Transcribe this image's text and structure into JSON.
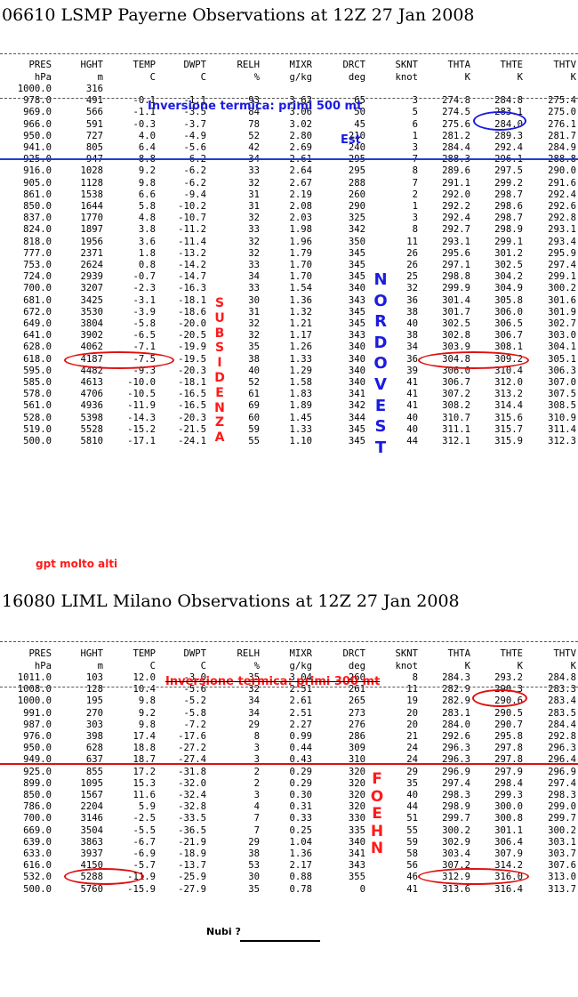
{
  "payerne": {
    "title": "06610 LSMP Payerne Observations at 12Z 27 Jan 2008",
    "headers": [
      "PRES",
      "HGHT",
      "TEMP",
      "DWPT",
      "RELH",
      "MIXR",
      "DRCT",
      "SKNT",
      "THTA",
      "THTE",
      "THTV"
    ],
    "units": [
      "hPa",
      "m",
      "C",
      "C",
      "%",
      "g/kg",
      "deg",
      "knot",
      "K",
      "K",
      "K"
    ],
    "rows": [
      [
        "1000.0",
        "316",
        "",
        "",
        "",
        "",
        "",
        "",
        "",
        "",
        ""
      ],
      [
        "978.0",
        "491",
        "-0.1",
        "-1.1",
        "93",
        "3.62",
        "65",
        "3",
        "274.8",
        "284.8",
        "275.4"
      ],
      [
        "969.0",
        "566",
        "-1.1",
        "-3.5",
        "84",
        "3.06",
        "50",
        "5",
        "274.5",
        "283.1",
        "275.0"
      ],
      [
        "966.0",
        "591",
        "-0.3",
        "-3.7",
        "78",
        "3.02",
        "45",
        "6",
        "275.6",
        "284.0",
        "276.1"
      ],
      [
        "950.0",
        "727",
        "4.0",
        "-4.9",
        "52",
        "2.80",
        "210",
        "1",
        "281.2",
        "289.3",
        "281.7"
      ],
      [
        "941.0",
        "805",
        "6.4",
        "-5.6",
        "42",
        "2.69",
        "240",
        "3",
        "284.4",
        "292.4",
        "284.9"
      ],
      [
        "925.0",
        "947",
        "8.8",
        "-6.2",
        "34",
        "2.61",
        "295",
        "7",
        "288.3",
        "296.1",
        "288.8"
      ],
      [
        "916.0",
        "1028",
        "9.2",
        "-6.2",
        "33",
        "2.64",
        "295",
        "8",
        "289.6",
        "297.5",
        "290.0"
      ],
      [
        "905.0",
        "1128",
        "9.8",
        "-6.2",
        "32",
        "2.67",
        "288",
        "7",
        "291.1",
        "299.2",
        "291.6"
      ],
      [
        "861.0",
        "1538",
        "6.6",
        "-9.4",
        "31",
        "2.19",
        "260",
        "2",
        "292.0",
        "298.7",
        "292.4"
      ],
      [
        "850.0",
        "1644",
        "5.8",
        "-10.2",
        "31",
        "2.08",
        "290",
        "1",
        "292.2",
        "298.6",
        "292.6"
      ],
      [
        "837.0",
        "1770",
        "4.8",
        "-10.7",
        "32",
        "2.03",
        "325",
        "3",
        "292.4",
        "298.7",
        "292.8"
      ],
      [
        "824.0",
        "1897",
        "3.8",
        "-11.2",
        "33",
        "1.98",
        "342",
        "8",
        "292.7",
        "298.9",
        "293.1"
      ],
      [
        "818.0",
        "1956",
        "3.6",
        "-11.4",
        "32",
        "1.96",
        "350",
        "11",
        "293.1",
        "299.1",
        "293.4"
      ],
      [
        "777.0",
        "2371",
        "1.8",
        "-13.2",
        "32",
        "1.79",
        "345",
        "26",
        "295.6",
        "301.2",
        "295.9"
      ],
      [
        "753.0",
        "2624",
        "0.8",
        "-14.2",
        "33",
        "1.70",
        "345",
        "26",
        "297.1",
        "302.5",
        "297.4"
      ],
      [
        "724.0",
        "2939",
        "-0.7",
        "-14.7",
        "34",
        "1.70",
        "345",
        "25",
        "298.8",
        "304.2",
        "299.1"
      ],
      [
        "700.0",
        "3207",
        "-2.3",
        "-16.3",
        "33",
        "1.54",
        "340",
        "32",
        "299.9",
        "304.9",
        "300.2"
      ],
      [
        "681.0",
        "3425",
        "-3.1",
        "-18.1",
        "30",
        "1.36",
        "343",
        "36",
        "301.4",
        "305.8",
        "301.6"
      ],
      [
        "672.0",
        "3530",
        "-3.9",
        "-18.6",
        "31",
        "1.32",
        "345",
        "38",
        "301.7",
        "306.0",
        "301.9"
      ],
      [
        "649.0",
        "3804",
        "-5.8",
        "-20.0",
        "32",
        "1.21",
        "345",
        "40",
        "302.5",
        "306.5",
        "302.7"
      ],
      [
        "641.0",
        "3902",
        "-6.5",
        "-20.5",
        "32",
        "1.17",
        "343",
        "38",
        "302.8",
        "306.7",
        "303.0"
      ],
      [
        "628.0",
        "4062",
        "-7.1",
        "-19.9",
        "35",
        "1.26",
        "340",
        "34",
        "303.9",
        "308.1",
        "304.1"
      ],
      [
        "618.0",
        "4187",
        "-7.5",
        "-19.5",
        "38",
        "1.33",
        "340",
        "36",
        "304.8",
        "309.2",
        "305.1"
      ],
      [
        "595.0",
        "4482",
        "-9.3",
        "-20.3",
        "40",
        "1.29",
        "340",
        "39",
        "306.0",
        "310.4",
        "306.3"
      ],
      [
        "585.0",
        "4613",
        "-10.0",
        "-18.1",
        "52",
        "1.58",
        "340",
        "41",
        "306.7",
        "312.0",
        "307.0"
      ],
      [
        "578.0",
        "4706",
        "-10.5",
        "-16.5",
        "61",
        "1.83",
        "341",
        "41",
        "307.2",
        "313.2",
        "307.5"
      ],
      [
        "561.0",
        "4936",
        "-11.9",
        "-16.5",
        "69",
        "1.89",
        "342",
        "41",
        "308.2",
        "314.4",
        "308.5"
      ],
      [
        "528.0",
        "5398",
        "-14.3",
        "-20.3",
        "60",
        "1.45",
        "344",
        "40",
        "310.7",
        "315.6",
        "310.9"
      ],
      [
        "519.0",
        "5528",
        "-15.2",
        "-21.5",
        "59",
        "1.33",
        "345",
        "40",
        "311.1",
        "315.7",
        "311.4"
      ],
      [
        "500.0",
        "5810",
        "-17.1",
        "-24.1",
        "55",
        "1.10",
        "345",
        "44",
        "312.1",
        "315.9",
        "312.3"
      ]
    ],
    "annotations": {
      "inversion": "Inversione termica: primi 500 mt",
      "est": "Est",
      "subsidenza": [
        "S",
        "U",
        "B",
        "S",
        "I",
        "D",
        "E",
        "N",
        "Z",
        "A"
      ],
      "nordovest": [
        "N",
        "O",
        "R",
        "D",
        "O",
        "V",
        "E",
        "S",
        "T"
      ],
      "gpt": "gpt molto alti"
    }
  },
  "milano": {
    "title": "16080 LIML Milano Observations at 12Z 27 Jan 2008",
    "headers": [
      "PRES",
      "HGHT",
      "TEMP",
      "DWPT",
      "RELH",
      "MIXR",
      "DRCT",
      "SKNT",
      "THTA",
      "THTE",
      "THTV"
    ],
    "units": [
      "hPa",
      "m",
      "C",
      "C",
      "%",
      "g/kg",
      "deg",
      "knot",
      "K",
      "K",
      "K"
    ],
    "rows": [
      [
        "1011.0",
        "103",
        "12.0",
        "-3.0",
        "35",
        "3.04",
        "260",
        "8",
        "284.3",
        "293.2",
        "284.8"
      ],
      [
        "1008.0",
        "128",
        "10.4",
        "-5.6",
        "32",
        "2.51",
        "261",
        "11",
        "282.9",
        "290.3",
        "283.3"
      ],
      [
        "1000.0",
        "195",
        "9.8",
        "-5.2",
        "34",
        "2.61",
        "265",
        "19",
        "282.9",
        "290.6",
        "283.4"
      ],
      [
        "991.0",
        "270",
        "9.2",
        "-5.8",
        "34",
        "2.51",
        "273",
        "20",
        "283.1",
        "290.5",
        "283.5"
      ],
      [
        "987.0",
        "303",
        "9.8",
        "-7.2",
        "29",
        "2.27",
        "276",
        "20",
        "284.0",
        "290.7",
        "284.4"
      ],
      [
        "976.0",
        "398",
        "17.4",
        "-17.6",
        "8",
        "0.99",
        "286",
        "21",
        "292.6",
        "295.8",
        "292.8"
      ],
      [
        "950.0",
        "628",
        "18.8",
        "-27.2",
        "3",
        "0.44",
        "309",
        "24",
        "296.3",
        "297.8",
        "296.3"
      ],
      [
        "949.0",
        "637",
        "18.7",
        "-27.4",
        "3",
        "0.43",
        "310",
        "24",
        "296.3",
        "297.8",
        "296.4"
      ],
      [
        "925.0",
        "855",
        "17.2",
        "-31.8",
        "2",
        "0.29",
        "320",
        "29",
        "296.9",
        "297.9",
        "296.9"
      ],
      [
        "899.0",
        "1095",
        "15.3",
        "-32.0",
        "2",
        "0.29",
        "320",
        "35",
        "297.4",
        "298.4",
        "297.4"
      ],
      [
        "850.0",
        "1567",
        "11.6",
        "-32.4",
        "3",
        "0.30",
        "320",
        "40",
        "298.3",
        "299.3",
        "298.3"
      ],
      [
        "786.0",
        "2204",
        "5.9",
        "-32.8",
        "4",
        "0.31",
        "320",
        "44",
        "298.9",
        "300.0",
        "299.0"
      ],
      [
        "700.0",
        "3146",
        "-2.5",
        "-33.5",
        "7",
        "0.33",
        "330",
        "51",
        "299.7",
        "300.8",
        "299.7"
      ],
      [
        "669.0",
        "3504",
        "-5.5",
        "-36.5",
        "7",
        "0.25",
        "335",
        "55",
        "300.2",
        "301.1",
        "300.2"
      ],
      [
        "639.0",
        "3863",
        "-6.7",
        "-21.9",
        "29",
        "1.04",
        "340",
        "59",
        "302.9",
        "306.4",
        "303.1"
      ],
      [
        "633.0",
        "3937",
        "-6.9",
        "-18.9",
        "38",
        "1.36",
        "341",
        "58",
        "303.4",
        "307.9",
        "303.7"
      ],
      [
        "616.0",
        "4150",
        "-5.7",
        "-13.7",
        "53",
        "2.17",
        "343",
        "56",
        "307.2",
        "314.2",
        "307.6"
      ],
      [
        "532.0",
        "5288",
        "-11.9",
        "-25.9",
        "30",
        "0.88",
        "355",
        "46",
        "312.9",
        "316.0",
        "313.0"
      ],
      [
        "500.0",
        "5760",
        "-15.9",
        "-27.9",
        "35",
        "0.78",
        "0",
        "41",
        "313.6",
        "316.4",
        "313.7"
      ]
    ],
    "annotations": {
      "inversion": "Inversione termica: primi 300 mt",
      "foehn": [
        "F",
        "O",
        "E",
        "H",
        "N"
      ],
      "nubi": "Nubi ?"
    }
  },
  "colors": {
    "annotation_blue": "#1b1be0",
    "annotation_red": "#ff1a1a"
  }
}
